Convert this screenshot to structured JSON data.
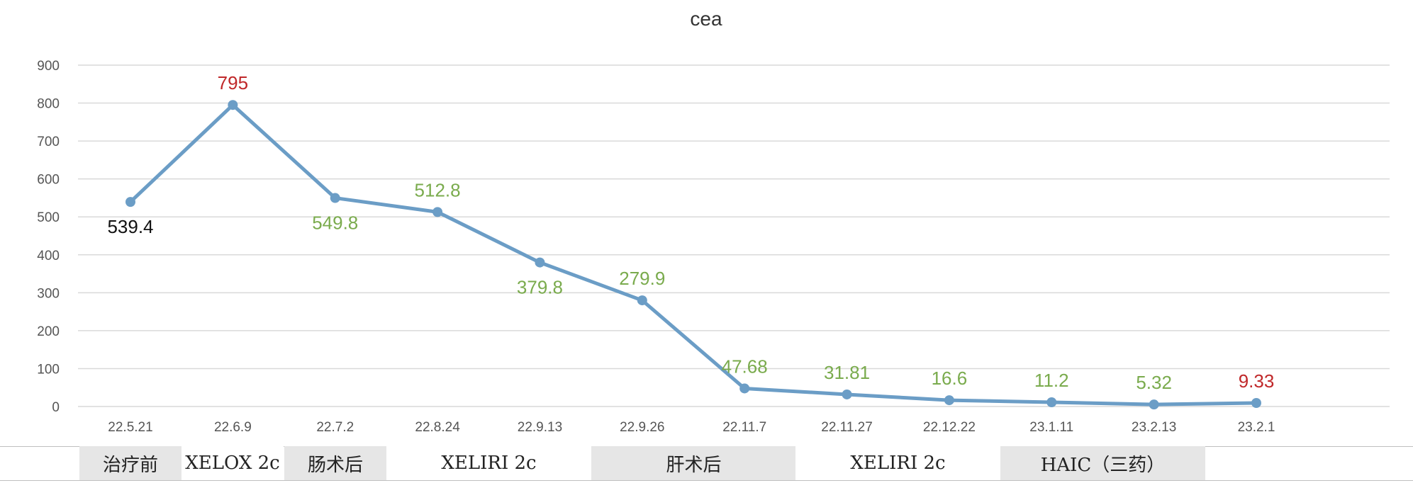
{
  "chart_data": {
    "type": "line",
    "title": "cea",
    "xlabel": "",
    "ylabel": "",
    "ylim": [
      0,
      900
    ],
    "yticks": [
      0,
      100,
      200,
      300,
      400,
      500,
      600,
      700,
      800,
      900
    ],
    "grid": true,
    "legend": "none",
    "categories": [
      "22.5.21",
      "22.6.9",
      "22.7.2",
      "22.8.24",
      "22.9.13",
      "22.9.26",
      "22.11.7",
      "22.11.27",
      "22.12.22",
      "23.1.11",
      "23.2.13",
      "23.2.1"
    ],
    "series": [
      {
        "values": [
          539.4,
          795,
          549.8,
          512.8,
          379.8,
          279.9,
          47.68,
          31.81,
          16.6,
          11.2,
          5.32,
          9.33
        ],
        "labels": [
          "539.4",
          "795",
          "549.8",
          "512.8",
          "379.8",
          "279.9",
          "47.68",
          "31.81",
          "16.6",
          "11.2",
          "5.32",
          "9.33"
        ],
        "label_positions": [
          "below",
          "above",
          "below",
          "above",
          "below",
          "above",
          "above",
          "above",
          "above",
          "above",
          "above",
          "above"
        ],
        "label_colors": [
          "#111111",
          "#c0282a",
          "#7aab4d",
          "#7aab4d",
          "#7aab4d",
          "#7aab4d",
          "#7aab4d",
          "#7aab4d",
          "#7aab4d",
          "#7aab4d",
          "#7aab4d",
          "#c0282a"
        ],
        "color": "#6b9dc6"
      }
    ],
    "phases": [
      {
        "label": "治疗前",
        "from_index": 0,
        "to_index": 0,
        "shaded": true
      },
      {
        "label": "XELOX 2c",
        "from_index": 1,
        "to_index": 1,
        "shaded": false
      },
      {
        "label": "肠术后",
        "from_index": 2,
        "to_index": 2,
        "shaded": true
      },
      {
        "label": "XELIRI 2c",
        "from_index": 3,
        "to_index": 4,
        "shaded": false
      },
      {
        "label": "肝术后",
        "from_index": 5,
        "to_index": 6,
        "shaded": true
      },
      {
        "label": "XELIRI 2c",
        "from_index": 7,
        "to_index": 8,
        "shaded": false
      },
      {
        "label": "HAIC（三药）",
        "from_index": 9,
        "to_index": 10,
        "shaded": true
      }
    ]
  }
}
